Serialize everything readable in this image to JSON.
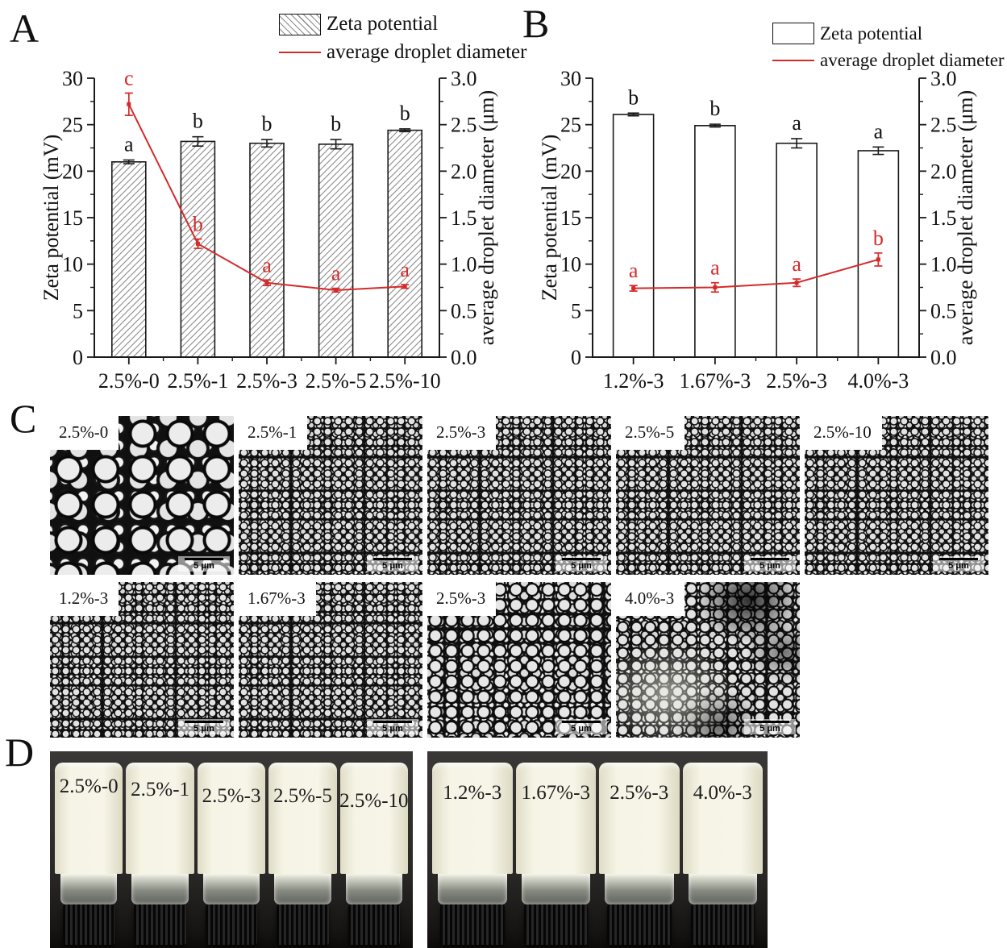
{
  "panels": {
    "A": {
      "letter": "A",
      "legend": {
        "bar_label": "Zeta potential",
        "line_label": "average droplet diameter"
      }
    },
    "B": {
      "letter": "B",
      "legend": {
        "bar_label": "Zeta potential",
        "line_label": "average droplet diameter"
      }
    },
    "C": {
      "letter": "C"
    },
    "D": {
      "letter": "D"
    }
  },
  "chart_data": [
    {
      "id": "A",
      "type": "bar",
      "subtype": "bar-line-dual-axis",
      "categories": [
        "2.5%-0",
        "2.5%-1",
        "2.5%-3",
        "2.5%-5",
        "2.5%-10"
      ],
      "bar_series": {
        "name": "Zeta potential",
        "axis": "left",
        "fill": "hatched",
        "values": [
          21.0,
          23.2,
          23.0,
          22.9,
          24.4
        ],
        "errors": [
          0.2,
          0.5,
          0.4,
          0.5,
          0.15
        ],
        "sig_letters": [
          "a",
          "b",
          "b",
          "b",
          "b"
        ]
      },
      "line_series": {
        "name": "average droplet diameter",
        "axis": "right",
        "color": "#d42a2a",
        "values": [
          2.72,
          1.22,
          0.8,
          0.72,
          0.76
        ],
        "errors": [
          0.12,
          0.05,
          0.03,
          0.02,
          0.02
        ],
        "sig_letters": [
          "c",
          "b",
          "a",
          "a",
          "a"
        ]
      },
      "left_axis": {
        "label": "Zeta potential (mV)",
        "min": 0,
        "max": 30,
        "major": 5,
        "minor": 2.5
      },
      "right_axis": {
        "label": "average droplet diameter (μm)",
        "min": 0,
        "max": 3.0,
        "major": 0.5,
        "minor": 0.25
      },
      "grid": false,
      "legend_position": "top"
    },
    {
      "id": "B",
      "type": "bar",
      "subtype": "bar-line-dual-axis",
      "categories": [
        "1.2%-3",
        "1.67%-3",
        "2.5%-3",
        "4.0%-3"
      ],
      "bar_series": {
        "name": "Zeta potential",
        "axis": "left",
        "fill": "white",
        "values": [
          26.1,
          24.9,
          23.0,
          22.2
        ],
        "errors": [
          0.15,
          0.15,
          0.5,
          0.4
        ],
        "sig_letters": [
          "b",
          "b",
          "a",
          "a"
        ]
      },
      "line_series": {
        "name": "average droplet diameter",
        "axis": "right",
        "color": "#d42a2a",
        "values": [
          0.74,
          0.75,
          0.8,
          1.05
        ],
        "errors": [
          0.03,
          0.05,
          0.04,
          0.07
        ],
        "sig_letters": [
          "a",
          "a",
          "a",
          "b"
        ]
      },
      "left_axis": {
        "label": "Zeta potential (mV)",
        "min": 0,
        "max": 30,
        "major": 5,
        "minor": 2.5
      },
      "right_axis": {
        "label": "average droplet diameter (μm)",
        "min": 0,
        "max": 3.0,
        "major": 0.5,
        "minor": 0.25
      },
      "grid": false,
      "legend_position": "top"
    }
  ],
  "micrographs": {
    "rows": [
      [
        {
          "label": "2.5%-0",
          "scale_bar": "5 μm",
          "texture": "coarse"
        },
        {
          "label": "2.5%-1",
          "scale_bar": "5 μm",
          "texture": "fine"
        },
        {
          "label": "2.5%-3",
          "scale_bar": "5 μm",
          "texture": "fine"
        },
        {
          "label": "2.5%-5",
          "scale_bar": "5 μm",
          "texture": "fine"
        },
        {
          "label": "2.5%-10",
          "scale_bar": "5 μm",
          "texture": "fine"
        }
      ],
      [
        {
          "label": "1.2%-3",
          "scale_bar": "5 μm",
          "texture": "fine"
        },
        {
          "label": "1.67%-3",
          "scale_bar": "5 μm",
          "texture": "fine"
        },
        {
          "label": "2.5%-3",
          "scale_bar": "5 μm",
          "texture": "medium"
        },
        {
          "label": "4.0%-3",
          "scale_bar": "5 μm",
          "texture": "patchy"
        }
      ]
    ]
  },
  "photos": [
    {
      "side": "left",
      "vial_labels": [
        "2.5%-0",
        "2.5%-1",
        "2.5%-3",
        "2.5%-5",
        "2.5%-10"
      ]
    },
    {
      "side": "right",
      "vial_labels": [
        "1.2%-3",
        "1.67%-3",
        "2.5%-3",
        "4.0%-3"
      ]
    }
  ]
}
